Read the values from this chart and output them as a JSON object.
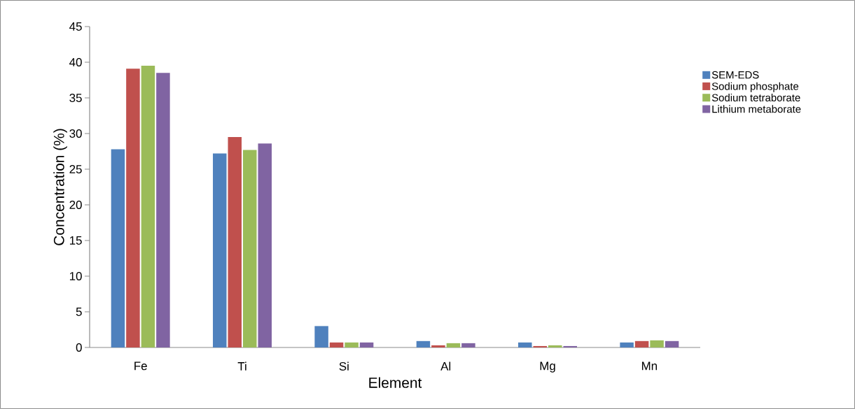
{
  "chart_data": {
    "type": "bar",
    "xlabel": "Element",
    "ylabel": "Concentration (%)",
    "categories": [
      "Fe",
      "Ti",
      "Si",
      "Al",
      "Mg",
      "Mn"
    ],
    "series": [
      {
        "name": "SEM-EDS",
        "color": "#4f81bd",
        "values": [
          27.8,
          27.2,
          3.0,
          0.9,
          0.7,
          0.7
        ]
      },
      {
        "name": "Sodium phosphate",
        "color": "#c0504d",
        "values": [
          39.1,
          29.5,
          0.7,
          0.3,
          0.2,
          0.9
        ]
      },
      {
        "name": "Sodium tetraborate",
        "color": "#9bbb59",
        "values": [
          39.5,
          27.7,
          0.7,
          0.6,
          0.3,
          1.0
        ]
      },
      {
        "name": "Lithium metaborate",
        "color": "#8064a2",
        "values": [
          38.5,
          28.6,
          0.7,
          0.6,
          0.2,
          0.9
        ]
      }
    ],
    "ylim": [
      0,
      45
    ],
    "yticks": [
      0,
      5,
      10,
      15,
      20,
      25,
      30,
      35,
      40,
      45
    ],
    "grid": false,
    "legend": "right"
  }
}
